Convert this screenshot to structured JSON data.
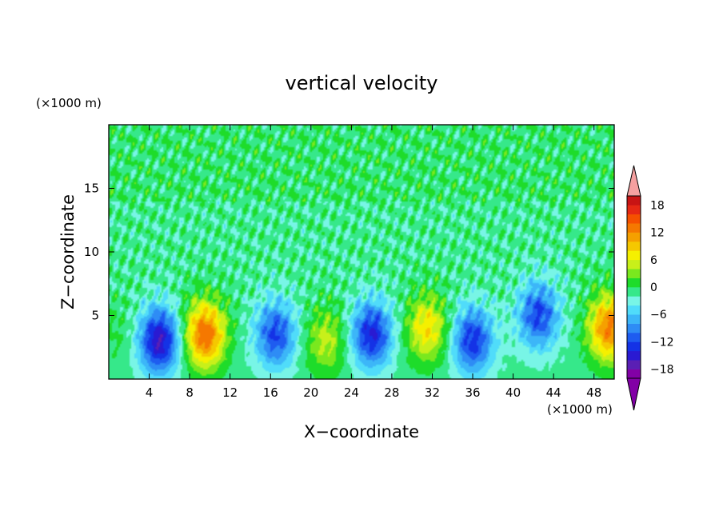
{
  "chart_data": {
    "type": "heatmap",
    "title": "vertical velocity",
    "xlabel": "X−coordinate",
    "ylabel": "Z−coordinate",
    "x_unit": "(×1000 m)",
    "y_unit": "(×1000 m)",
    "xlim": [
      0,
      50
    ],
    "ylim": [
      0,
      20
    ],
    "x_ticks": [
      "4",
      "8",
      "12",
      "16",
      "20",
      "24",
      "28",
      "32",
      "36",
      "40",
      "44",
      "48"
    ],
    "y_ticks": [
      "5",
      "10",
      "15"
    ],
    "colorbar": {
      "tick_labels": [
        "18",
        "12",
        "6",
        "0",
        "−6",
        "−12",
        "−18"
      ],
      "levels_low_to_high": [
        -20,
        -18,
        -16,
        -14,
        -12,
        -10,
        -8,
        -6,
        -4,
        -2,
        0,
        2,
        4,
        6,
        8,
        10,
        12,
        14,
        16,
        18,
        20
      ],
      "colors_low_to_high": [
        "#8200a6",
        "#5a1fb4",
        "#2a1ad2",
        "#1432e6",
        "#1e5cf0",
        "#2e8cf5",
        "#3cb6f8",
        "#50dcfa",
        "#78f5e6",
        "#36e88a",
        "#1edc2a",
        "#7ae81e",
        "#c8f01a",
        "#f5f000",
        "#f5c800",
        "#f5a000",
        "#f57800",
        "#f55000",
        "#e62814",
        "#c81414"
      ],
      "above_max_color": "#f5a0a0",
      "below_min_color": "#8200a6"
    },
    "features": [
      {
        "x": 1.0,
        "z": 3.5,
        "w": 1.5
      },
      {
        "x": 5.0,
        "z": 3.0,
        "w": -15
      },
      {
        "x": 9.5,
        "z": 3.5,
        "w": 15
      },
      {
        "x": 16.5,
        "z": 3.5,
        "w": -11
      },
      {
        "x": 21.5,
        "z": 3.0,
        "w": 6
      },
      {
        "x": 26.0,
        "z": 3.5,
        "w": -13
      },
      {
        "x": 31.5,
        "z": 4.0,
        "w": 9
      },
      {
        "x": 36.0,
        "z": 3.0,
        "w": -12
      },
      {
        "x": 42.5,
        "z": 5.0,
        "w": -11
      },
      {
        "x": 49.5,
        "z": 4.0,
        "w": 14
      }
    ]
  }
}
